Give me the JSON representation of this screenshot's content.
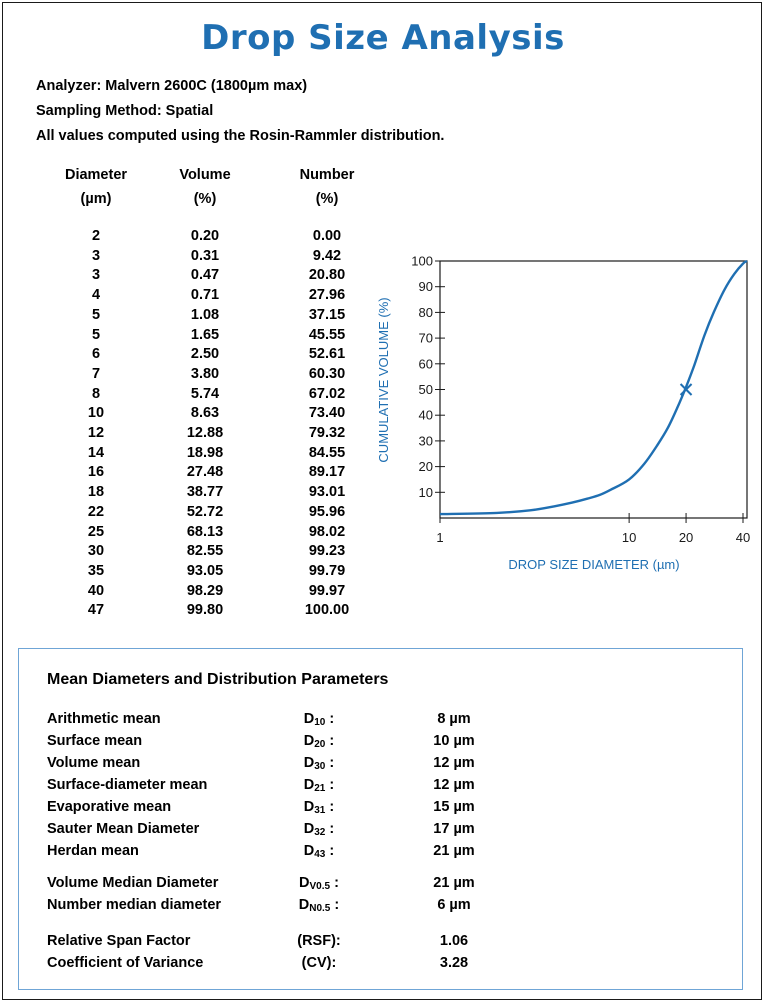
{
  "title": "Drop Size Analysis",
  "info": {
    "analyzer": "Analyzer: Malvern 2600C (1800µm max)",
    "sampling": "Sampling Method: Spatial",
    "note": "All values computed using the Rosin-Rammler distribution."
  },
  "table": {
    "headers": [
      {
        "line1": "Diameter",
        "line2": "(µm)"
      },
      {
        "line1": "Volume",
        "line2": "(%)"
      },
      {
        "line1": "Number",
        "line2": "(%)"
      }
    ],
    "rows": [
      [
        "2",
        "0.20",
        "0.00"
      ],
      [
        "3",
        "0.31",
        "9.42"
      ],
      [
        "3",
        "0.47",
        "20.80"
      ],
      [
        "4",
        "0.71",
        "27.96"
      ],
      [
        "5",
        "1.08",
        "37.15"
      ],
      [
        "5",
        "1.65",
        "45.55"
      ],
      [
        "6",
        "2.50",
        "52.61"
      ],
      [
        "7",
        "3.80",
        "60.30"
      ],
      [
        "8",
        "5.74",
        "67.02"
      ],
      [
        "10",
        "8.63",
        "73.40"
      ],
      [
        "12",
        "12.88",
        "79.32"
      ],
      [
        "14",
        "18.98",
        "84.55"
      ],
      [
        "16",
        "27.48",
        "89.17"
      ],
      [
        "18",
        "38.77",
        "93.01"
      ],
      [
        "22",
        "52.72",
        "95.96"
      ],
      [
        "25",
        "68.13",
        "98.02"
      ],
      [
        "30",
        "82.55",
        "99.23"
      ],
      [
        "35",
        "93.05",
        "99.79"
      ],
      [
        "40",
        "98.29",
        "99.97"
      ],
      [
        "47",
        "99.80",
        "100.00"
      ]
    ]
  },
  "chart_data": {
    "type": "line",
    "xlabel": "DROP SIZE DIAMETER (µm)",
    "ylabel": "CUMULATIVE VOLUME (%)",
    "xscale": "log",
    "xlim": [
      1,
      42
    ],
    "ylim": [
      0,
      100
    ],
    "xticks": [
      1,
      10,
      20,
      40
    ],
    "yticks": [
      10,
      20,
      30,
      40,
      50,
      60,
      70,
      80,
      90,
      100
    ],
    "grid": false,
    "line_color": "#1f6fb2",
    "series": [
      {
        "x": [
          1,
          2,
          3,
          4,
          5,
          6,
          7,
          8,
          10,
          12,
          14,
          16,
          18,
          20,
          22,
          25,
          28,
          32,
          36,
          40,
          42
        ],
        "y": [
          1.5,
          2,
          3,
          4.5,
          6,
          7.5,
          9,
          11,
          15,
          21,
          28,
          35,
          43,
          51,
          59,
          71,
          80,
          89,
          95,
          99,
          100
        ]
      }
    ],
    "marker": {
      "x": 20,
      "y": 50,
      "symbol": "x"
    }
  },
  "params": {
    "title": "Mean Diameters and Distribution Parameters",
    "rows": [
      {
        "label": "Arithmetic mean",
        "sym": "D",
        "sub": "10",
        "suffix": " :",
        "value": "8 µm"
      },
      {
        "label": "Surface mean",
        "sym": "D",
        "sub": "20",
        "suffix": " :",
        "value": "10 µm"
      },
      {
        "label": "Volume mean",
        "sym": "D",
        "sub": "30",
        "suffix": " :",
        "value": "12 µm"
      },
      {
        "label": "Surface-diameter mean",
        "sym": "D",
        "sub": "21",
        "suffix": " :",
        "value": "12 µm"
      },
      {
        "label": "Evaporative mean",
        "sym": "D",
        "sub": "31",
        "suffix": " :",
        "value": "15 µm"
      },
      {
        "label": "Sauter Mean Diameter",
        "sym": "D",
        "sub": "32",
        "suffix": " :",
        "value": "17 µm"
      },
      {
        "label": "Herdan mean",
        "sym": "D",
        "sub": "43",
        "suffix": " :",
        "value": "21 µm"
      },
      {
        "label": "Volume Median Diameter",
        "sym": "D",
        "sub": "V0.5",
        "suffix": " :",
        "value": "21 µm"
      },
      {
        "label": "Number median diameter",
        "sym": "D",
        "sub": "N0.5",
        "suffix": " :",
        "value": "6 µm"
      },
      {
        "label": "Relative Span Factor",
        "sym": "(RSF):",
        "sub": "",
        "suffix": "",
        "value": "1.06"
      },
      {
        "label": "Coefficient of Variance",
        "sym": "(CV):",
        "sub": "",
        "suffix": "",
        "value": "3.28"
      }
    ]
  }
}
